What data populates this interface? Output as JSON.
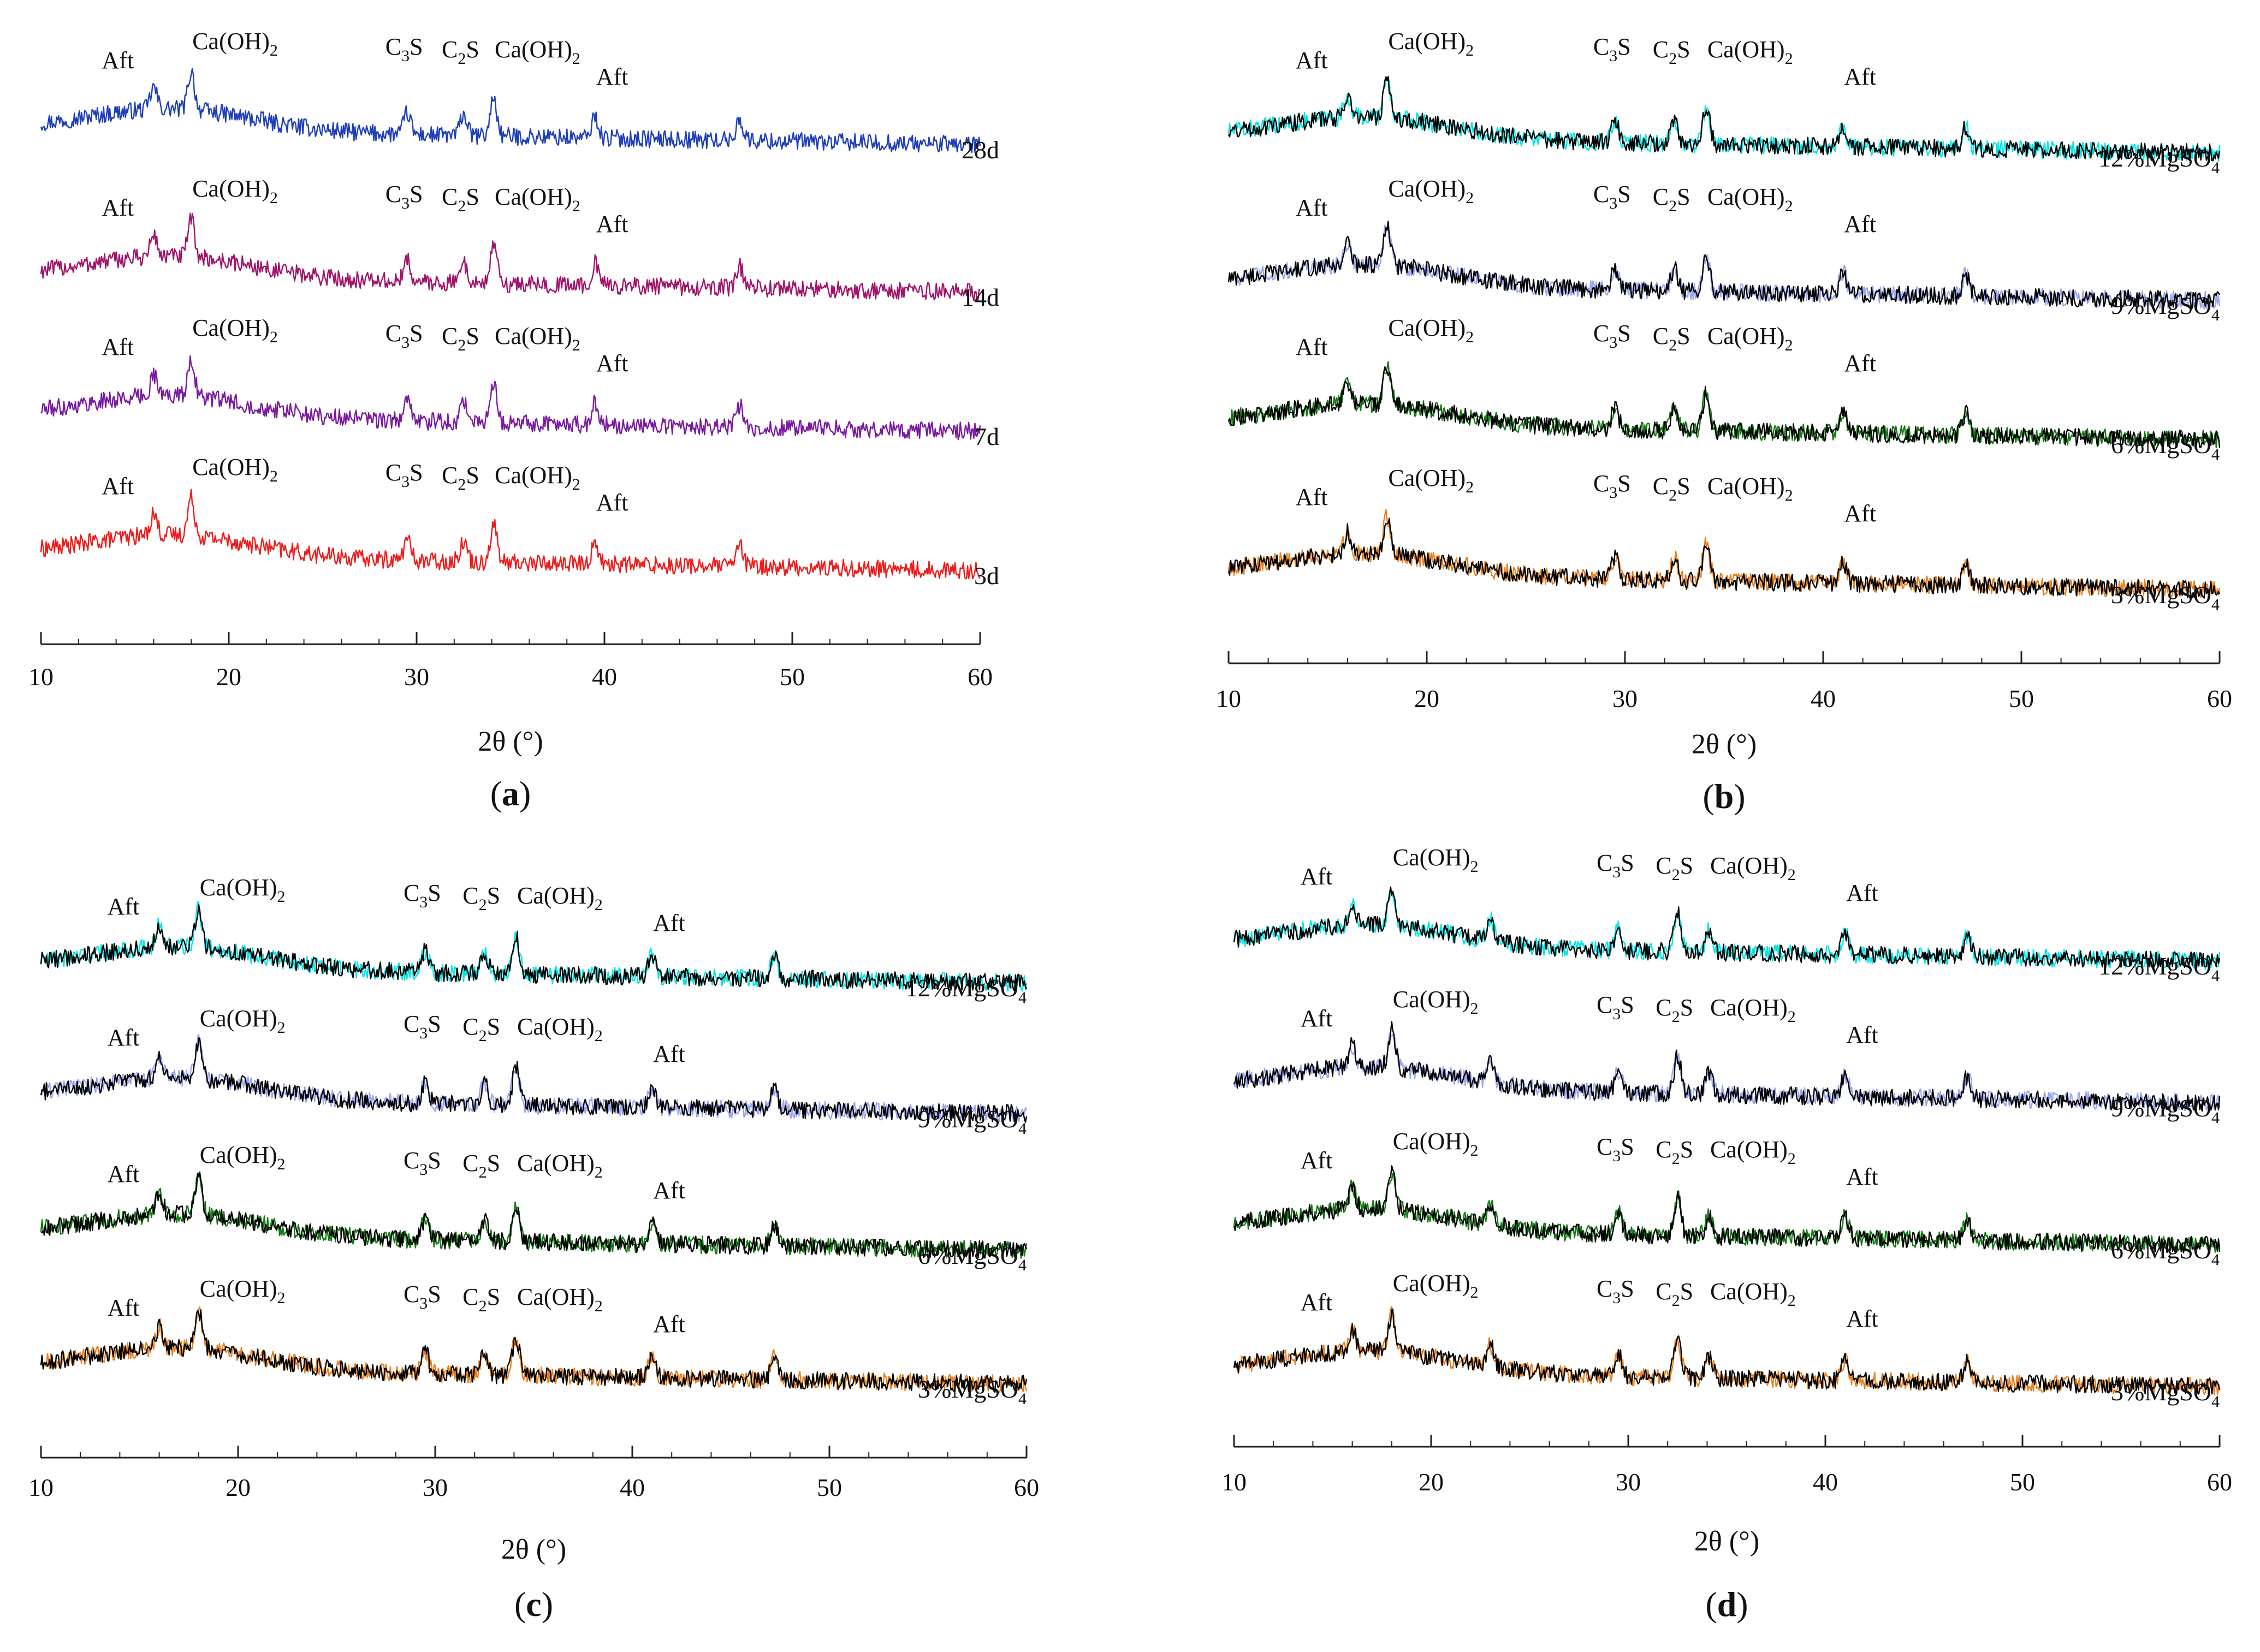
{
  "figure": {
    "panels": [
      {
        "caption": "(a)",
        "caption_letter": "a",
        "xlabel": "2θ (°)",
        "xlim": [
          10,
          60
        ],
        "xticks": [
          10,
          20,
          30,
          40,
          50,
          60
        ],
        "series": [
          {
            "name": "28d",
            "colors": [
              "#1f3fb8"
            ]
          },
          {
            "name": "14d",
            "colors": [
              "#a0146a"
            ]
          },
          {
            "name": "7d",
            "colors": [
              "#7a1aa0"
            ]
          },
          {
            "name": "3d",
            "colors": [
              "#ee1c1c"
            ]
          }
        ],
        "peaks": [
          {
            "label": "Aft",
            "main": "Aft",
            "sub": "",
            "tail": "",
            "x": 16
          },
          {
            "label": "Ca(OH)2",
            "main": "Ca(OH)",
            "sub": "2",
            "tail": "",
            "x": 18
          },
          {
            "label": "C3S",
            "main": "C",
            "sub": "3",
            "tail": "S",
            "x": 29.5
          },
          {
            "label": "C2S",
            "main": "C",
            "sub": "2",
            "tail": "S",
            "x": 32.5
          },
          {
            "label": "Ca(OH)2",
            "main": "Ca(OH)",
            "sub": "2",
            "tail": "",
            "x": 34.1
          },
          {
            "label": "Aft",
            "main": "Aft",
            "sub": "",
            "tail": "",
            "x": 39.5
          }
        ]
      },
      {
        "caption": "(b)",
        "caption_letter": "b",
        "xlabel": "2θ (°)",
        "xlim": [
          10,
          60
        ],
        "xticks": [
          10,
          20,
          30,
          40,
          50,
          60
        ],
        "series": [
          {
            "name": "12%MgSO4",
            "colors": [
              "#00e5e5",
              "#000000"
            ]
          },
          {
            "name": "9%MgSO4",
            "colors": [
              "#9aa6f0",
              "#000000"
            ]
          },
          {
            "name": "6%MgSO4",
            "colors": [
              "#127a12",
              "#000000"
            ]
          },
          {
            "name": "3%MgSO4",
            "colors": [
              "#e8801e",
              "#000000"
            ]
          }
        ],
        "peaks": [
          {
            "label": "Aft",
            "main": "Aft",
            "sub": "",
            "tail": "",
            "x": 16
          },
          {
            "label": "Ca(OH)2",
            "main": "Ca(OH)",
            "sub": "2",
            "tail": "",
            "x": 18
          },
          {
            "label": "C3S",
            "main": "C",
            "sub": "3",
            "tail": "S",
            "x": 29.5
          },
          {
            "label": "C2S",
            "main": "C",
            "sub": "2",
            "tail": "S",
            "x": 32.5
          },
          {
            "label": "Ca(OH)2",
            "main": "Ca(OH)",
            "sub": "2",
            "tail": "",
            "x": 34.1
          },
          {
            "label": "Aft",
            "main": "Aft",
            "sub": "",
            "tail": "",
            "x": 41
          }
        ]
      },
      {
        "caption": "(c)",
        "caption_letter": "c",
        "xlabel": "2θ (°)",
        "xlim": [
          10,
          60
        ],
        "xticks": [
          10,
          20,
          30,
          40,
          50,
          60
        ],
        "series": [
          {
            "name": "12%MgSO4",
            "colors": [
              "#00e5e5",
              "#000000"
            ]
          },
          {
            "name": "9%MgSO4",
            "colors": [
              "#9aa6f0",
              "#000000"
            ]
          },
          {
            "name": "6%MgSO4",
            "colors": [
              "#127a12",
              "#000000"
            ]
          },
          {
            "name": "3%MgSO4",
            "colors": [
              "#e8801e",
              "#000000"
            ]
          }
        ],
        "peaks": [
          {
            "label": "Aft",
            "main": "Aft",
            "sub": "",
            "tail": "",
            "x": 16
          },
          {
            "label": "Ca(OH)2",
            "main": "Ca(OH)",
            "sub": "2",
            "tail": "",
            "x": 18
          },
          {
            "label": "C3S",
            "main": "C",
            "sub": "3",
            "tail": "S",
            "x": 29.5
          },
          {
            "label": "C2S",
            "main": "C",
            "sub": "2",
            "tail": "S",
            "x": 32.5
          },
          {
            "label": "Ca(OH)2",
            "main": "Ca(OH)",
            "sub": "2",
            "tail": "",
            "x": 34.1
          },
          {
            "label": "Aft",
            "main": "Aft",
            "sub": "",
            "tail": "",
            "x": 41
          }
        ]
      },
      {
        "caption": "(d)",
        "caption_letter": "d",
        "xlabel": "2θ (°)",
        "xlim": [
          10,
          60
        ],
        "xticks": [
          10,
          20,
          30,
          40,
          50,
          60
        ],
        "series": [
          {
            "name": "12%MgSO4",
            "colors": [
              "#00e5e5",
              "#000000"
            ]
          },
          {
            "name": "9%MgSO4",
            "colors": [
              "#9aa6f0",
              "#000000"
            ]
          },
          {
            "name": "6%MgSO4",
            "colors": [
              "#127a12",
              "#000000"
            ]
          },
          {
            "name": "3%MgSO4",
            "colors": [
              "#e8801e",
              "#000000"
            ]
          }
        ],
        "peaks": [
          {
            "label": "Aft",
            "main": "Aft",
            "sub": "",
            "tail": "",
            "x": 16
          },
          {
            "label": "Ca(OH)2",
            "main": "Ca(OH)",
            "sub": "2",
            "tail": "",
            "x": 18
          },
          {
            "label": "C3S",
            "main": "C",
            "sub": "3",
            "tail": "S",
            "x": 29.5
          },
          {
            "label": "C2S",
            "main": "C",
            "sub": "2",
            "tail": "S",
            "x": 32.5
          },
          {
            "label": "Ca(OH)2",
            "main": "Ca(OH)",
            "sub": "2",
            "tail": "",
            "x": 34.1
          },
          {
            "label": "Aft",
            "main": "Aft",
            "sub": "",
            "tail": "",
            "x": 41
          }
        ]
      }
    ]
  },
  "chart_data": [
    {
      "type": "line",
      "title": "(a)",
      "xlabel": "2θ (°)",
      "ylabel": "",
      "xlim": [
        10,
        60
      ],
      "series": [
        {
          "name": "28d",
          "peaks_2theta": [
            16,
            18,
            29.5,
            32.5,
            34.1,
            39.5,
            47.2
          ]
        },
        {
          "name": "14d",
          "peaks_2theta": [
            16,
            18,
            29.5,
            32.5,
            34.1,
            39.5,
            47.2
          ]
        },
        {
          "name": "7d",
          "peaks_2theta": [
            16,
            18,
            29.5,
            32.5,
            34.1,
            39.5,
            47.2
          ]
        },
        {
          "name": "3d",
          "peaks_2theta": [
            16,
            18,
            29.5,
            32.5,
            34.1,
            39.5,
            47.2
          ]
        }
      ],
      "annotations": [
        "Aft",
        "Ca(OH)2",
        "C3S",
        "C2S",
        "Ca(OH)2",
        "Aft"
      ]
    },
    {
      "type": "line",
      "title": "(b)",
      "xlabel": "2θ (°)",
      "ylabel": "",
      "xlim": [
        10,
        60
      ],
      "series": [
        {
          "name": "12%MgSO4",
          "peaks_2theta": [
            16,
            18,
            29.5,
            32.5,
            34.1,
            41,
            47.2
          ]
        },
        {
          "name": "9%MgSO4",
          "peaks_2theta": [
            16,
            18,
            29.5,
            32.5,
            34.1,
            41,
            47.2
          ]
        },
        {
          "name": "6%MgSO4",
          "peaks_2theta": [
            16,
            18,
            29.5,
            32.5,
            34.1,
            41,
            47.2
          ]
        },
        {
          "name": "3%MgSO4",
          "peaks_2theta": [
            16,
            18,
            29.5,
            32.5,
            34.1,
            41,
            47.2
          ]
        }
      ],
      "annotations": [
        "Aft",
        "Ca(OH)2",
        "C3S",
        "C2S",
        "Ca(OH)2",
        "Aft"
      ]
    },
    {
      "type": "line",
      "title": "(c)",
      "xlabel": "2θ (°)",
      "ylabel": "",
      "xlim": [
        10,
        60
      ],
      "series": [
        {
          "name": "12%MgSO4",
          "peaks_2theta": [
            16,
            18,
            29.5,
            32.5,
            34.1,
            41,
            47.2
          ]
        },
        {
          "name": "9%MgSO4",
          "peaks_2theta": [
            16,
            18,
            29.5,
            32.5,
            34.1,
            41,
            47.2
          ]
        },
        {
          "name": "6%MgSO4",
          "peaks_2theta": [
            16,
            18,
            29.5,
            32.5,
            34.1,
            41,
            47.2
          ]
        },
        {
          "name": "3%MgSO4",
          "peaks_2theta": [
            16,
            18,
            29.5,
            32.5,
            34.1,
            41,
            47.2
          ]
        }
      ],
      "annotations": [
        "Aft",
        "Ca(OH)2",
        "C3S",
        "C2S",
        "Ca(OH)2",
        "Aft"
      ]
    },
    {
      "type": "line",
      "title": "(d)",
      "xlabel": "2θ (°)",
      "ylabel": "",
      "xlim": [
        10,
        60
      ],
      "series": [
        {
          "name": "12%MgSO4",
          "peaks_2theta": [
            16,
            18,
            23,
            29.5,
            32.5,
            34.1,
            41,
            47.2
          ]
        },
        {
          "name": "9%MgSO4",
          "peaks_2theta": [
            16,
            18,
            23,
            29.5,
            32.5,
            34.1,
            41,
            47.2
          ]
        },
        {
          "name": "6%MgSO4",
          "peaks_2theta": [
            16,
            18,
            23,
            29.5,
            32.5,
            34.1,
            41,
            47.2
          ]
        },
        {
          "name": "3%MgSO4",
          "peaks_2theta": [
            16,
            18,
            23,
            29.5,
            32.5,
            34.1,
            41,
            47.2
          ]
        }
      ],
      "annotations": [
        "Aft",
        "Ca(OH)2",
        "C3S",
        "C2S",
        "Ca(OH)2",
        "Aft"
      ]
    }
  ]
}
